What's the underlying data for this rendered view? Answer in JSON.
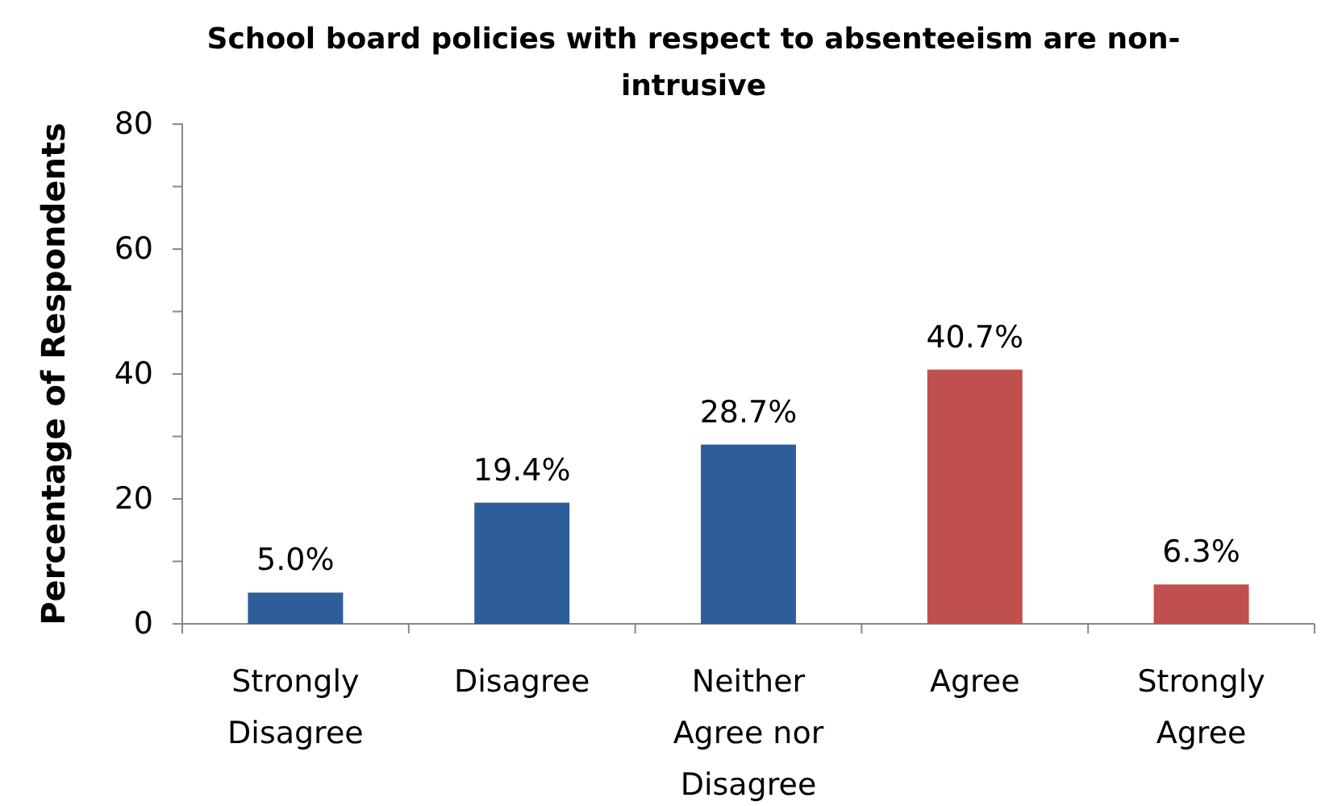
{
  "chart_data": {
    "type": "bar",
    "title": "School board policies with respect to absenteeism are non-intrusive",
    "ylabel": "Percentage of Respondents",
    "categories": [
      "Strongly Disagree",
      "Disagree",
      "Neither Agree nor Disagree",
      "Agree",
      "Strongly Agree"
    ],
    "values": [
      5.0,
      19.4,
      28.7,
      40.7,
      6.3
    ],
    "colors": [
      "#2e5e9a",
      "#2e5e9a",
      "#2e5e9a",
      "#c0504d",
      "#c0504d"
    ],
    "value_labels": [
      "5.0%",
      "19.4%",
      "28.7%",
      "40.7%",
      "6.3%"
    ],
    "ylim": [
      0,
      80
    ],
    "yticks": [
      0,
      {
        "value": 10,
        "label": null
      },
      20,
      {
        "value": 30,
        "label": null
      },
      40,
      {
        "value": 50,
        "label": null
      },
      60,
      {
        "value": 70,
        "label": null
      },
      80
    ]
  }
}
